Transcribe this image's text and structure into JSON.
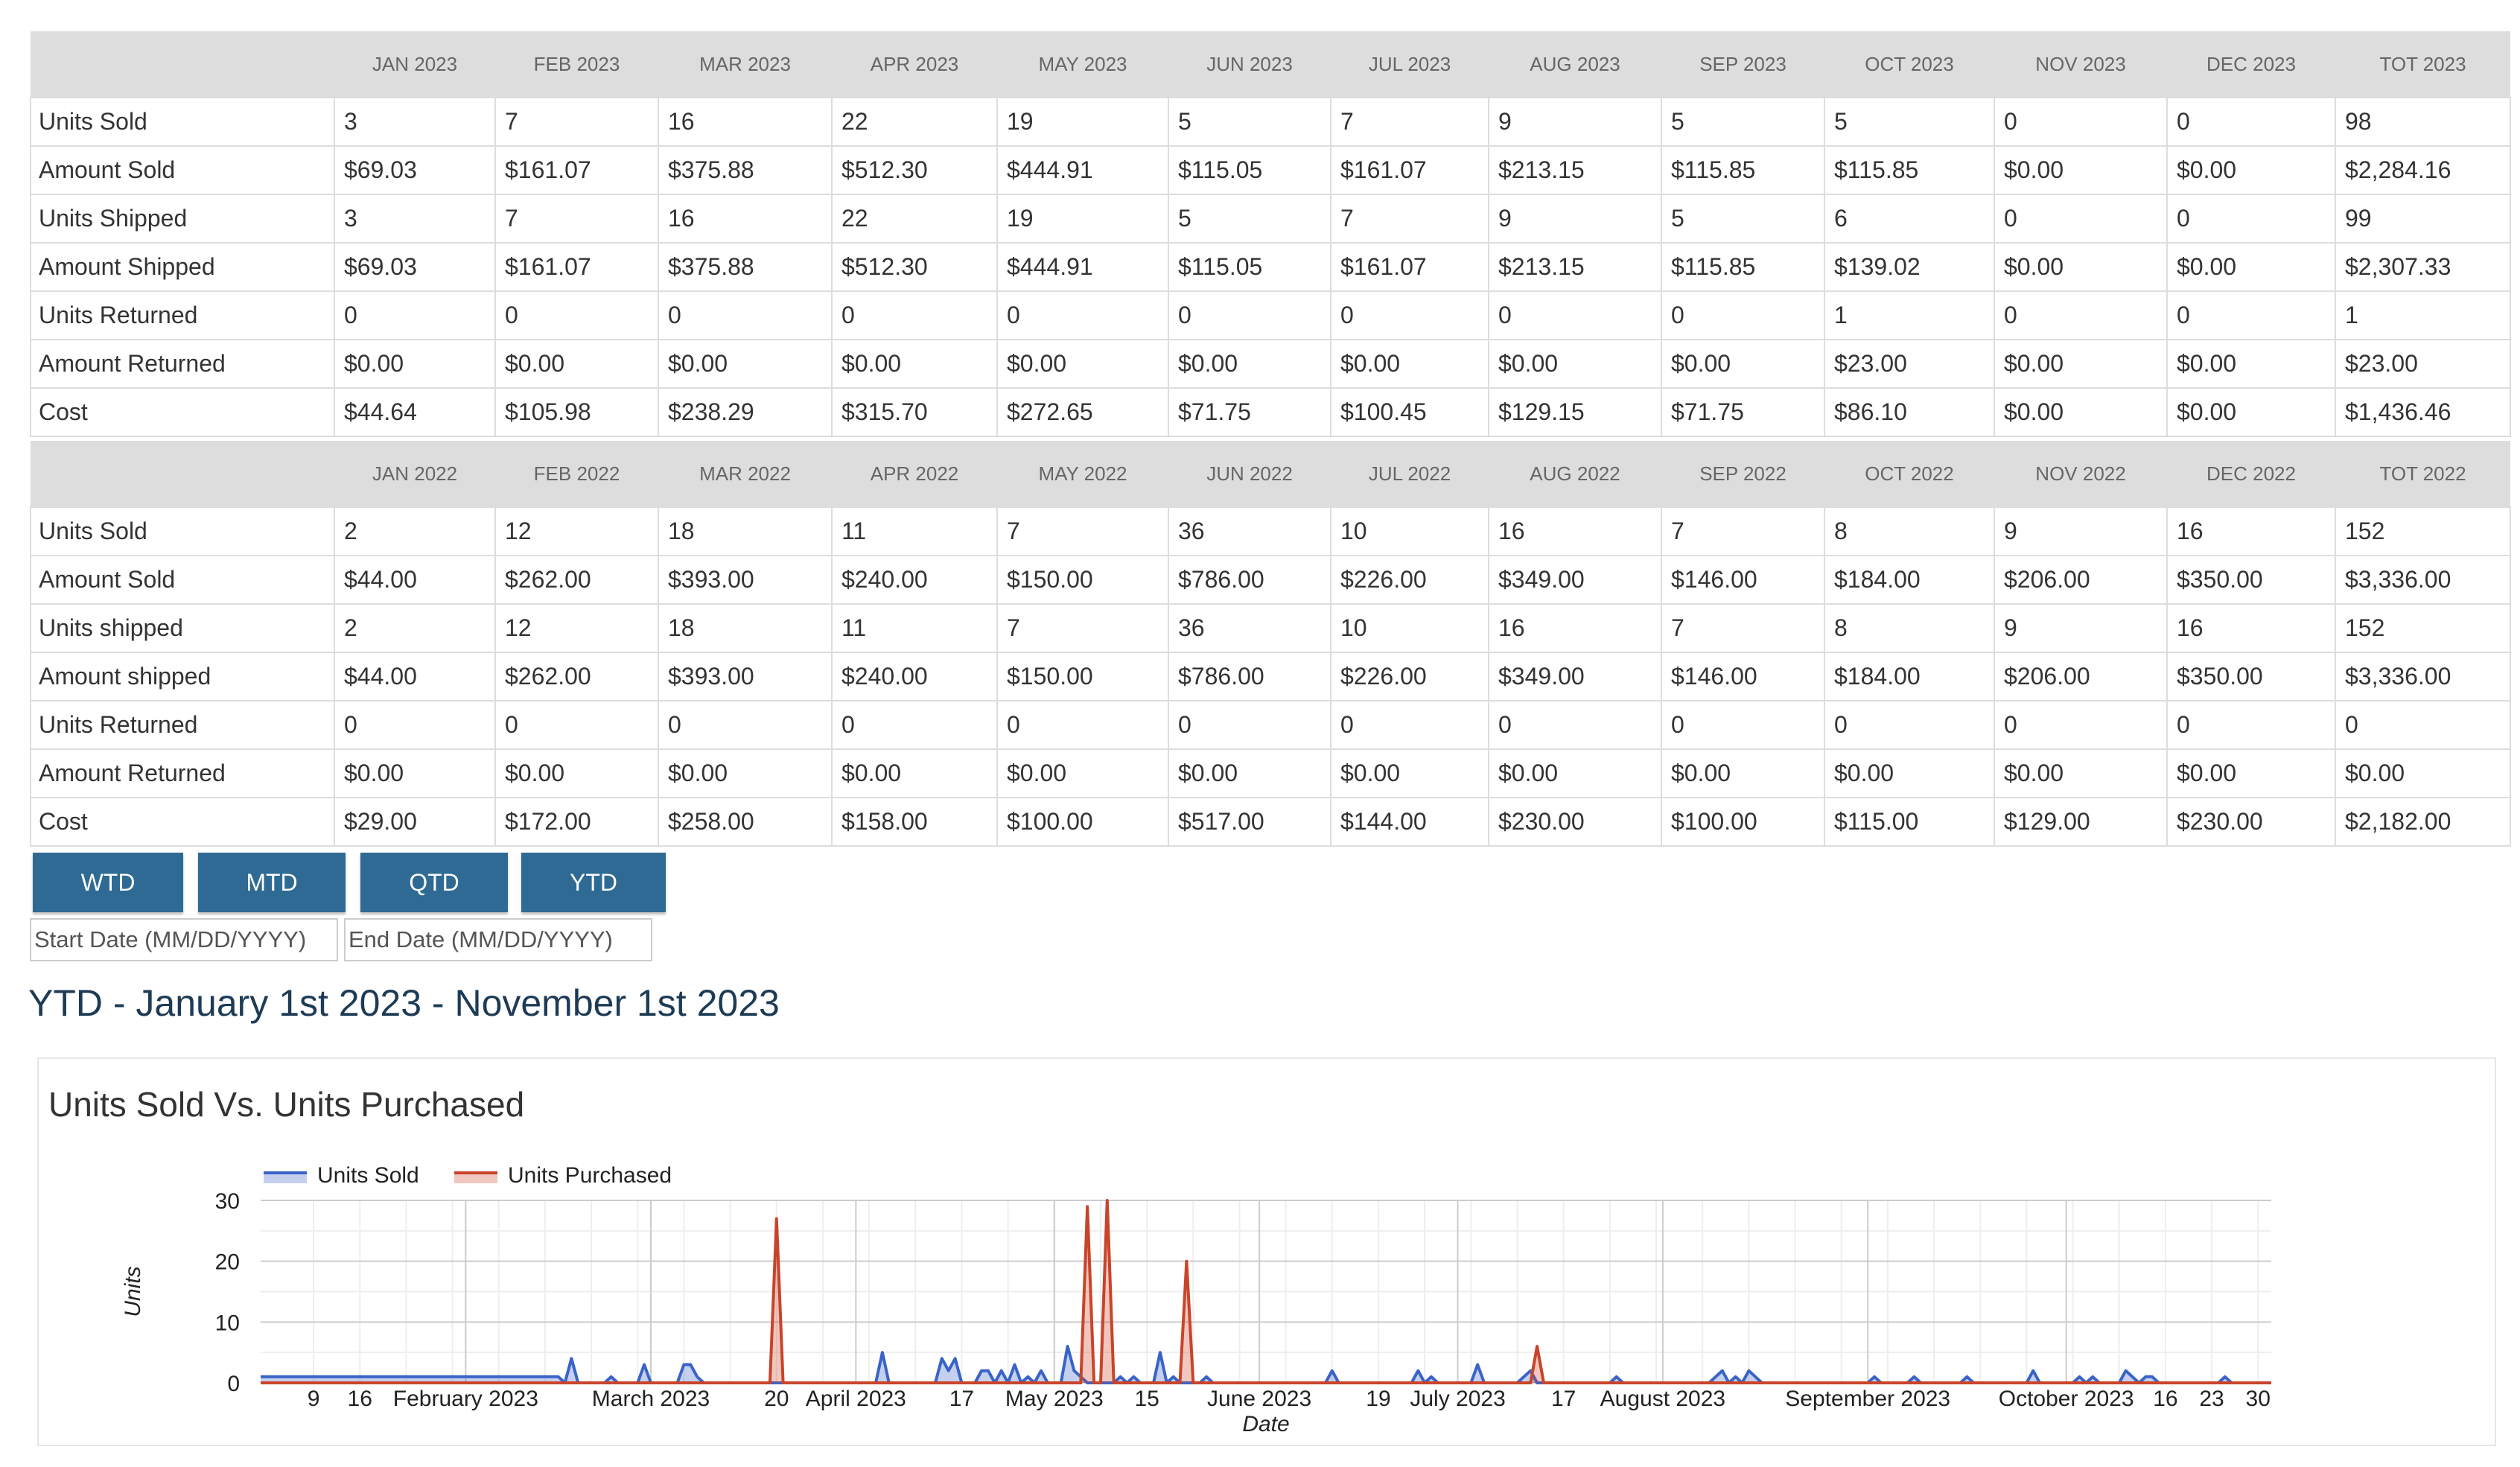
{
  "table_2023": {
    "headers": [
      "",
      "JAN 2023",
      "FEB 2023",
      "MAR 2023",
      "APR 2023",
      "MAY 2023",
      "JUN 2023",
      "JUL 2023",
      "AUG 2023",
      "SEP 2023",
      "OCT 2023",
      "NOV 2023",
      "DEC 2023",
      "TOT 2023"
    ],
    "rows": [
      [
        "Units Sold",
        "3",
        "7",
        "16",
        "22",
        "19",
        "5",
        "7",
        "9",
        "5",
        "5",
        "0",
        "0",
        "98"
      ],
      [
        "Amount Sold",
        "$69.03",
        "$161.07",
        "$375.88",
        "$512.30",
        "$444.91",
        "$115.05",
        "$161.07",
        "$213.15",
        "$115.85",
        "$115.85",
        "$0.00",
        "$0.00",
        "$2,284.16"
      ],
      [
        "Units Shipped",
        "3",
        "7",
        "16",
        "22",
        "19",
        "5",
        "7",
        "9",
        "5",
        "6",
        "0",
        "0",
        "99"
      ],
      [
        "Amount Shipped",
        "$69.03",
        "$161.07",
        "$375.88",
        "$512.30",
        "$444.91",
        "$115.05",
        "$161.07",
        "$213.15",
        "$115.85",
        "$139.02",
        "$0.00",
        "$0.00",
        "$2,307.33"
      ],
      [
        "Units Returned",
        "0",
        "0",
        "0",
        "0",
        "0",
        "0",
        "0",
        "0",
        "0",
        "1",
        "0",
        "0",
        "1"
      ],
      [
        "Amount Returned",
        "$0.00",
        "$0.00",
        "$0.00",
        "$0.00",
        "$0.00",
        "$0.00",
        "$0.00",
        "$0.00",
        "$0.00",
        "$23.00",
        "$0.00",
        "$0.00",
        "$23.00"
      ],
      [
        "Cost",
        "$44.64",
        "$105.98",
        "$238.29",
        "$315.70",
        "$272.65",
        "$71.75",
        "$100.45",
        "$129.15",
        "$71.75",
        "$86.10",
        "$0.00",
        "$0.00",
        "$1,436.46"
      ]
    ]
  },
  "table_2022": {
    "headers": [
      "",
      "JAN 2022",
      "FEB 2022",
      "MAR 2022",
      "APR 2022",
      "MAY 2022",
      "JUN 2022",
      "JUL 2022",
      "AUG 2022",
      "SEP 2022",
      "OCT 2022",
      "NOV 2022",
      "DEC 2022",
      "TOT 2022"
    ],
    "rows": [
      [
        "Units Sold",
        "2",
        "12",
        "18",
        "11",
        "7",
        "36",
        "10",
        "16",
        "7",
        "8",
        "9",
        "16",
        "152"
      ],
      [
        "Amount Sold",
        "$44.00",
        "$262.00",
        "$393.00",
        "$240.00",
        "$150.00",
        "$786.00",
        "$226.00",
        "$349.00",
        "$146.00",
        "$184.00",
        "$206.00",
        "$350.00",
        "$3,336.00"
      ],
      [
        "Units shipped",
        "2",
        "12",
        "18",
        "11",
        "7",
        "36",
        "10",
        "16",
        "7",
        "8",
        "9",
        "16",
        "152"
      ],
      [
        "Amount shipped",
        "$44.00",
        "$262.00",
        "$393.00",
        "$240.00",
        "$150.00",
        "$786.00",
        "$226.00",
        "$349.00",
        "$146.00",
        "$184.00",
        "$206.00",
        "$350.00",
        "$3,336.00"
      ],
      [
        "Units Returned",
        "0",
        "0",
        "0",
        "0",
        "0",
        "0",
        "0",
        "0",
        "0",
        "0",
        "0",
        "0",
        "0"
      ],
      [
        "Amount Returned",
        "$0.00",
        "$0.00",
        "$0.00",
        "$0.00",
        "$0.00",
        "$0.00",
        "$0.00",
        "$0.00",
        "$0.00",
        "$0.00",
        "$0.00",
        "$0.00",
        "$0.00"
      ],
      [
        "Cost",
        "$29.00",
        "$172.00",
        "$258.00",
        "$158.00",
        "$100.00",
        "$517.00",
        "$144.00",
        "$230.00",
        "$100.00",
        "$115.00",
        "$129.00",
        "$230.00",
        "$2,182.00"
      ]
    ]
  },
  "buttons": {
    "wtd": "WTD",
    "mtd": "MTD",
    "qtd": "QTD",
    "ytd": "YTD"
  },
  "date_range": {
    "start_placeholder": "Start Date (MM/DD/YYYY)",
    "end_placeholder": "End Date (MM/DD/YYYY)"
  },
  "range_heading": "YTD - January 1st 2023 - November 1st 2023",
  "colors": {
    "button_bg": "#2e6a93",
    "units_sold": "#3a63c8",
    "units_purchased": "#c9442a",
    "header_bg": "#dddddd"
  },
  "chart_data": {
    "type": "area",
    "title": "Units Sold Vs. Units Purchased",
    "xlabel": "Date",
    "ylabel": "Units",
    "xlim": [
      "2023-01-01",
      "2023-11-01"
    ],
    "ylim": [
      0,
      30
    ],
    "yticks": [
      0,
      10,
      20,
      30
    ],
    "x_tick_labels": [
      {
        "date": "2023-01-09",
        "label": "9"
      },
      {
        "date": "2023-01-16",
        "label": "16"
      },
      {
        "date": "2023-02-01",
        "label": "February 2023"
      },
      {
        "date": "2023-03-01",
        "label": "March 2023"
      },
      {
        "date": "2023-03-20",
        "label": "20"
      },
      {
        "date": "2023-04-01",
        "label": "April 2023"
      },
      {
        "date": "2023-04-17",
        "label": "17"
      },
      {
        "date": "2023-05-01",
        "label": "May 2023"
      },
      {
        "date": "2023-05-15",
        "label": "15"
      },
      {
        "date": "2023-06-01",
        "label": "June 2023"
      },
      {
        "date": "2023-06-19",
        "label": "19"
      },
      {
        "date": "2023-07-01",
        "label": "July 2023"
      },
      {
        "date": "2023-07-17",
        "label": "17"
      },
      {
        "date": "2023-08-01",
        "label": "August 2023"
      },
      {
        "date": "2023-09-01",
        "label": "September 2023"
      },
      {
        "date": "2023-10-01",
        "label": "October 2023"
      },
      {
        "date": "2023-10-16",
        "label": "16"
      },
      {
        "date": "2023-10-23",
        "label": "23"
      },
      {
        "date": "2023-10-30",
        "label": "30"
      }
    ],
    "grid": true,
    "legend": "top-left",
    "series": [
      {
        "name": "Units Sold",
        "color": "#3a63c8",
        "points": [
          [
            "2023-01-01",
            1
          ],
          [
            "2023-02-15",
            1
          ],
          [
            "2023-02-16",
            0
          ],
          [
            "2023-02-17",
            4
          ],
          [
            "2023-02-18",
            0
          ],
          [
            "2023-02-22",
            0
          ],
          [
            "2023-02-23",
            1
          ],
          [
            "2023-02-24",
            0
          ],
          [
            "2023-02-27",
            0
          ],
          [
            "2023-02-28",
            3
          ],
          [
            "2023-03-01",
            0
          ],
          [
            "2023-03-05",
            0
          ],
          [
            "2023-03-06",
            3
          ],
          [
            "2023-03-07",
            3
          ],
          [
            "2023-03-08",
            1
          ],
          [
            "2023-03-09",
            0
          ],
          [
            "2023-04-04",
            0
          ],
          [
            "2023-04-05",
            5
          ],
          [
            "2023-04-06",
            0
          ],
          [
            "2023-04-13",
            0
          ],
          [
            "2023-04-14",
            4
          ],
          [
            "2023-04-15",
            2
          ],
          [
            "2023-04-16",
            4
          ],
          [
            "2023-04-17",
            0
          ],
          [
            "2023-04-19",
            0
          ],
          [
            "2023-04-20",
            2
          ],
          [
            "2023-04-21",
            2
          ],
          [
            "2023-04-22",
            0
          ],
          [
            "2023-04-23",
            2
          ],
          [
            "2023-04-24",
            0
          ],
          [
            "2023-04-25",
            3
          ],
          [
            "2023-04-26",
            0
          ],
          [
            "2023-04-27",
            1
          ],
          [
            "2023-04-28",
            0
          ],
          [
            "2023-04-29",
            2
          ],
          [
            "2023-04-30",
            0
          ],
          [
            "2023-05-02",
            0
          ],
          [
            "2023-05-03",
            6
          ],
          [
            "2023-05-04",
            2
          ],
          [
            "2023-05-05",
            1
          ],
          [
            "2023-05-06",
            0
          ],
          [
            "2023-05-10",
            0
          ],
          [
            "2023-05-11",
            1
          ],
          [
            "2023-05-12",
            0
          ],
          [
            "2023-05-13",
            1
          ],
          [
            "2023-05-14",
            0
          ],
          [
            "2023-05-16",
            0
          ],
          [
            "2023-05-17",
            5
          ],
          [
            "2023-05-18",
            0
          ],
          [
            "2023-05-19",
            1
          ],
          [
            "2023-05-20",
            0
          ],
          [
            "2023-05-23",
            0
          ],
          [
            "2023-05-24",
            1
          ],
          [
            "2023-05-25",
            0
          ],
          [
            "2023-06-11",
            0
          ],
          [
            "2023-06-12",
            2
          ],
          [
            "2023-06-13",
            0
          ],
          [
            "2023-06-24",
            0
          ],
          [
            "2023-06-25",
            2
          ],
          [
            "2023-06-26",
            0
          ],
          [
            "2023-06-27",
            1
          ],
          [
            "2023-06-28",
            0
          ],
          [
            "2023-07-03",
            0
          ],
          [
            "2023-07-04",
            3
          ],
          [
            "2023-07-05",
            0
          ],
          [
            "2023-07-10",
            0
          ],
          [
            "2023-07-11",
            1
          ],
          [
            "2023-07-12",
            2
          ],
          [
            "2023-07-13",
            0
          ],
          [
            "2023-07-24",
            0
          ],
          [
            "2023-07-25",
            1
          ],
          [
            "2023-07-26",
            0
          ],
          [
            "2023-08-08",
            0
          ],
          [
            "2023-08-09",
            1
          ],
          [
            "2023-08-10",
            2
          ],
          [
            "2023-08-11",
            0
          ],
          [
            "2023-08-12",
            1
          ],
          [
            "2023-08-13",
            0
          ],
          [
            "2023-08-14",
            2
          ],
          [
            "2023-08-15",
            1
          ],
          [
            "2023-08-16",
            0
          ],
          [
            "2023-09-01",
            0
          ],
          [
            "2023-09-02",
            1
          ],
          [
            "2023-09-03",
            0
          ],
          [
            "2023-09-07",
            0
          ],
          [
            "2023-09-08",
            1
          ],
          [
            "2023-09-09",
            0
          ],
          [
            "2023-09-15",
            0
          ],
          [
            "2023-09-16",
            1
          ],
          [
            "2023-09-17",
            0
          ],
          [
            "2023-09-25",
            0
          ],
          [
            "2023-09-26",
            2
          ],
          [
            "2023-09-27",
            0
          ],
          [
            "2023-10-02",
            0
          ],
          [
            "2023-10-03",
            1
          ],
          [
            "2023-10-04",
            0
          ],
          [
            "2023-10-05",
            1
          ],
          [
            "2023-10-06",
            0
          ],
          [
            "2023-10-09",
            0
          ],
          [
            "2023-10-10",
            2
          ],
          [
            "2023-10-11",
            1
          ],
          [
            "2023-10-12",
            0
          ],
          [
            "2023-10-13",
            1
          ],
          [
            "2023-10-14",
            1
          ],
          [
            "2023-10-15",
            0
          ],
          [
            "2023-10-24",
            0
          ],
          [
            "2023-10-25",
            1
          ],
          [
            "2023-10-26",
            0
          ],
          [
            "2023-11-01",
            0
          ]
        ]
      },
      {
        "name": "Units Purchased",
        "color": "#c9442a",
        "points": [
          [
            "2023-01-01",
            0
          ],
          [
            "2023-03-19",
            0
          ],
          [
            "2023-03-20",
            27
          ],
          [
            "2023-03-21",
            0
          ],
          [
            "2023-05-05",
            0
          ],
          [
            "2023-05-06",
            29
          ],
          [
            "2023-05-07",
            0
          ],
          [
            "2023-05-08",
            0
          ],
          [
            "2023-05-09",
            30
          ],
          [
            "2023-05-10",
            0
          ],
          [
            "2023-05-20",
            0
          ],
          [
            "2023-05-21",
            20
          ],
          [
            "2023-05-22",
            0
          ],
          [
            "2023-07-12",
            0
          ],
          [
            "2023-07-13",
            6
          ],
          [
            "2023-07-14",
            0
          ],
          [
            "2023-11-01",
            0
          ]
        ]
      }
    ]
  }
}
